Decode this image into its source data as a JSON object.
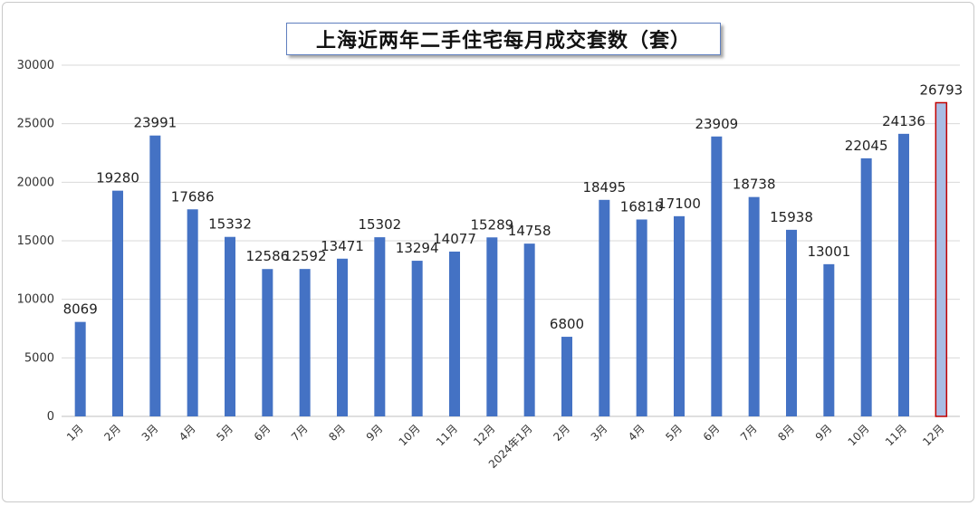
{
  "chart_data": {
    "type": "bar",
    "title": "上海近两年二手住宅每月成交套数（套）",
    "xlabel": "",
    "ylabel": "",
    "ylim": [
      0,
      30000
    ],
    "yticks": [
      0,
      5000,
      10000,
      15000,
      20000,
      25000,
      30000
    ],
    "grid": true,
    "legend": "none",
    "categories": [
      "1月",
      "2月",
      "3月",
      "4月",
      "5月",
      "6月",
      "7月",
      "8月",
      "9月",
      "10月",
      "11月",
      "12月",
      "2024年1月",
      "2月",
      "3月",
      "4月",
      "5月",
      "6月",
      "7月",
      "8月",
      "9月",
      "10月",
      "11月",
      "12月"
    ],
    "values": [
      8069,
      19280,
      23991,
      17686,
      15332,
      12586,
      12592,
      13471,
      15302,
      13294,
      14077,
      15289,
      14758,
      6800,
      18495,
      16818,
      17100,
      23909,
      18738,
      15938,
      13001,
      22045,
      24136,
      26793
    ],
    "data_labels": [
      "8069",
      "19280",
      "23991",
      "17686",
      "15332",
      "12586",
      "12592",
      "13471",
      "15302",
      "13294",
      "14077",
      "15289",
      "14758",
      "6800",
      "18495",
      "16818",
      "17100",
      "23909",
      "18738",
      "15938",
      "13001",
      "22045",
      "24136",
      "26793"
    ],
    "highlighted_index": 23,
    "colors": {
      "bar": "#4472c4",
      "highlight_fill": "#a9bde4",
      "highlight_border": "#c00000",
      "grid": "#d9d9d9",
      "axis": "#bfbfbf"
    }
  }
}
